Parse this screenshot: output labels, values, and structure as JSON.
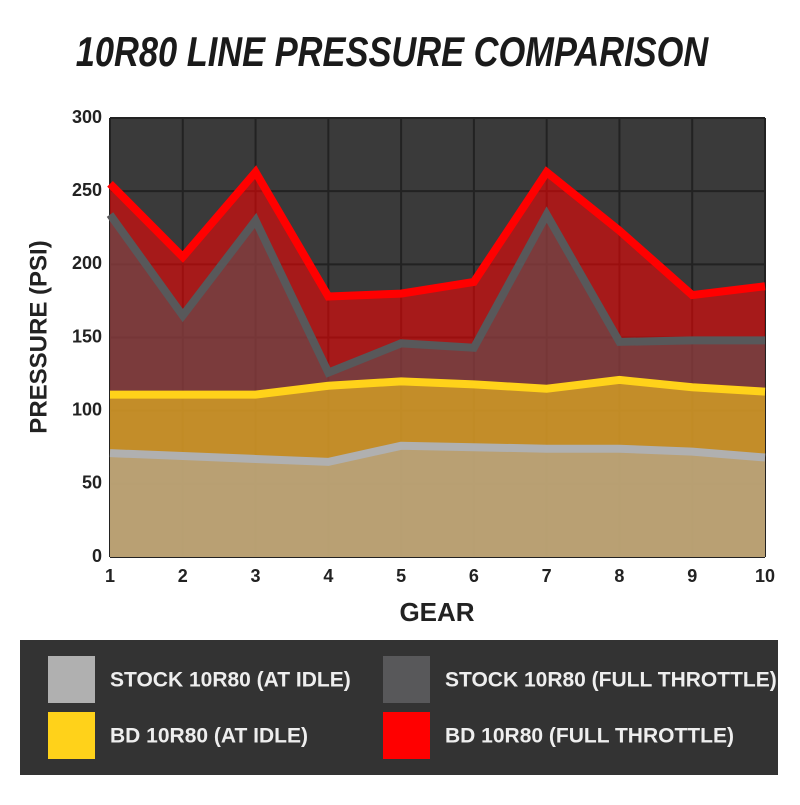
{
  "chart_data": {
    "type": "area",
    "title": "10R80 LINE PRESSURE COMPARISON",
    "x_label": "GEAR",
    "y_label": "PRESSURE (PSI)",
    "x": [
      1,
      2,
      3,
      4,
      5,
      6,
      7,
      8,
      9,
      10
    ],
    "xlim": [
      1,
      10
    ],
    "xticks": [
      1,
      2,
      3,
      4,
      5,
      6,
      7,
      8,
      9,
      10
    ],
    "ylim": [
      0,
      300
    ],
    "yticks": [
      0,
      50,
      100,
      150,
      200,
      250,
      300
    ],
    "grid": true,
    "series": [
      {
        "name": "BD 10R80 (FULL THROTTLE)",
        "color": "#ff0000",
        "values": [
          255,
          205,
          263,
          178,
          180,
          188,
          263,
          223,
          179,
          185
        ]
      },
      {
        "name": "STOCK 10R80 (FULL THROTTLE)",
        "color": "#58585a",
        "values": [
          234,
          165,
          230,
          126,
          146,
          143,
          234,
          147,
          148,
          148
        ]
      },
      {
        "name": "BD 10R80 (AT IDLE)",
        "color": "#ffd21a",
        "values": [
          111,
          111,
          111,
          117,
          120,
          118,
          115,
          121,
          116,
          113
        ]
      },
      {
        "name": "STOCK 10R80 (AT IDLE)",
        "color": "#b0b0b0",
        "values": [
          71,
          69,
          67,
          65,
          76,
          75,
          74,
          74,
          72,
          68
        ]
      }
    ]
  }
}
